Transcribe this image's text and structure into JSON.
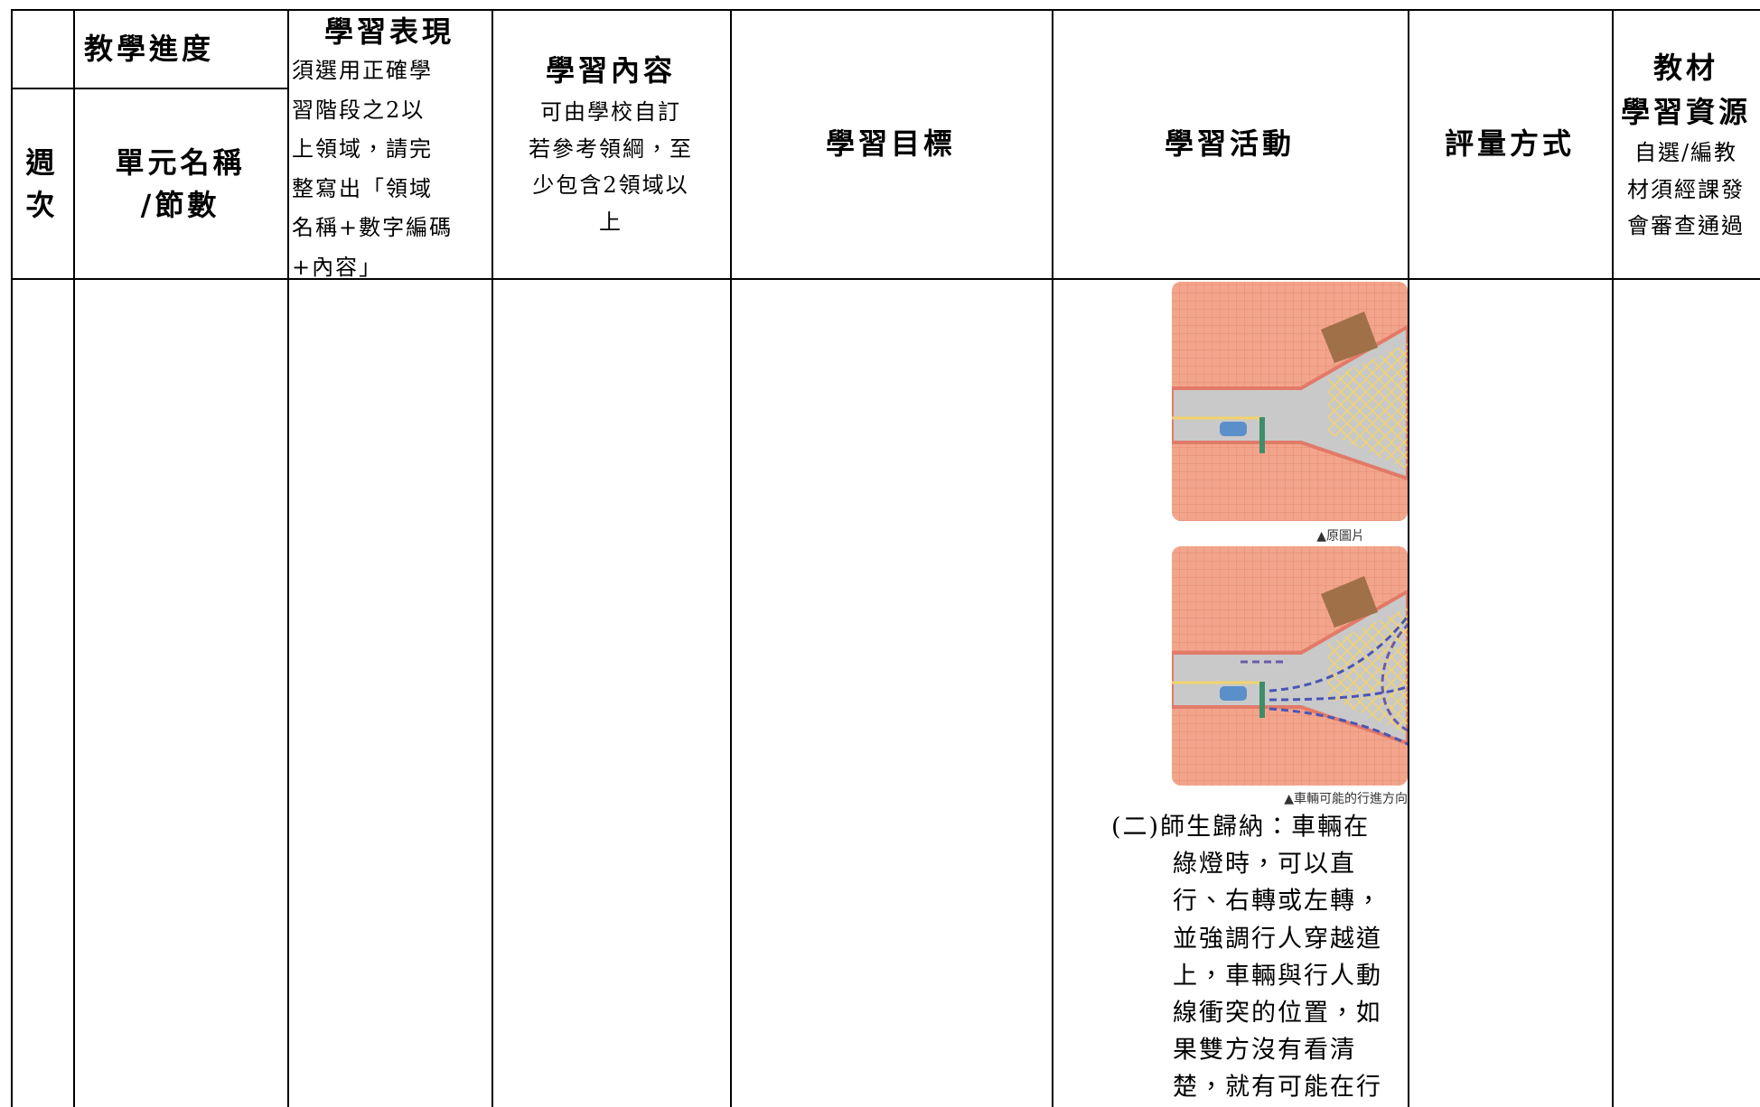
{
  "header": {
    "progress": "教學進度",
    "week": [
      "週",
      "次"
    ],
    "unit": [
      "單元名稱",
      "/節數"
    ],
    "performance": {
      "title": "學習表現",
      "note": [
        "須選用正確學",
        "習階段之2以",
        "上領域，請完",
        "整寫出「領域",
        "名稱+數字編碼",
        "+內容」"
      ]
    },
    "content": {
      "title": "學習內容",
      "note": [
        "可由學校自訂",
        "若參考領綱，至",
        "少包含2領域以",
        "上"
      ]
    },
    "objectives": "學習目標",
    "activities": "學習活動",
    "assessment": "評量方式",
    "materials": {
      "title": [
        "教材",
        "學習資源"
      ],
      "note": [
        "自選/編教",
        "材須經課發",
        "會審查通過"
      ]
    }
  },
  "activity": {
    "captions": [
      "▲原圖片",
      "▲車輛可能的行進方向"
    ],
    "text": [
      "(二)師生歸納：車輛在",
      "綠燈時，可以直",
      "行、右轉或左轉，",
      "並強調行人穿越道",
      "上，車輛與行人動",
      "線衝突的位置，如",
      "果雙方沒有看清",
      "楚，就有可能在行"
    ]
  }
}
